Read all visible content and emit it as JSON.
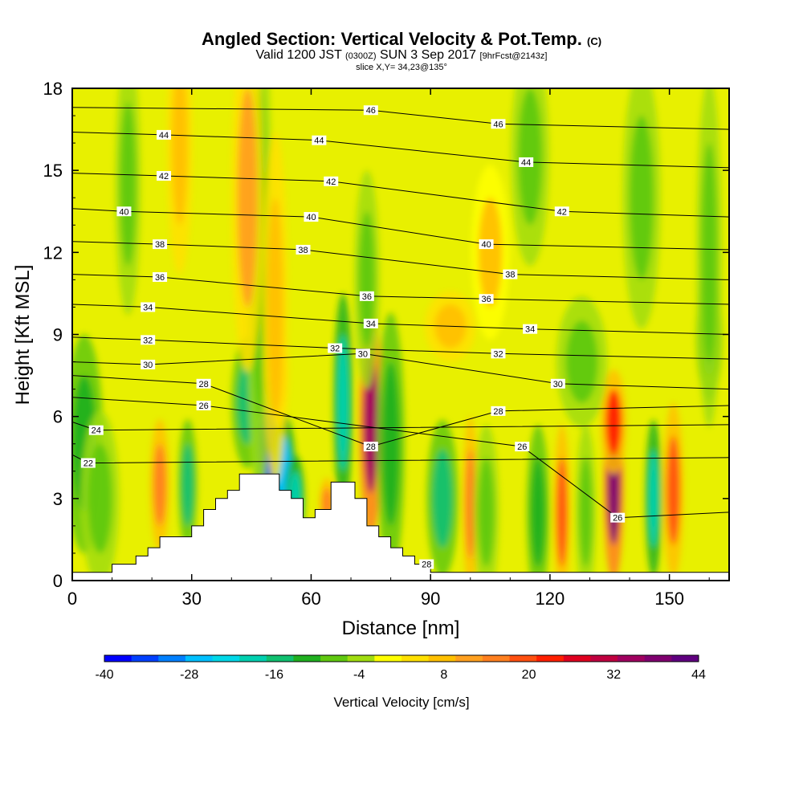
{
  "header": {
    "title": "Angled Section: Vertical Velocity & Pot.Temp.",
    "title_suffix": "(C)",
    "valid_prefix": "Valid 1200 JST",
    "valid_utc": "(0300Z)",
    "valid_date": "SUN 3 Sep 2017",
    "forecast": "[9hrFcst@2143z]",
    "slice": "slice X,Y= 34,23@135°"
  },
  "chart_data": {
    "type": "heatmap",
    "title": "Angled Section: Vertical Velocity & Pot.Temp.",
    "xlabel": "Distance [nm]",
    "ylabel": "Height [Kft MSL]",
    "xlim": [
      0,
      165
    ],
    "ylim": [
      0,
      18
    ],
    "xticks": [
      0,
      30,
      60,
      90,
      120,
      150
    ],
    "yticks": [
      0,
      3,
      6,
      9,
      12,
      15,
      18
    ],
    "colorbar": {
      "label": "Vertical Velocity [cm/s]",
      "min": -40,
      "max": 44,
      "step": 4,
      "tick_labels": [
        -40,
        -28,
        -16,
        -4,
        8,
        20,
        32,
        44
      ],
      "colors": [
        "#0000ff",
        "#0040ff",
        "#0080ff",
        "#00c0ff",
        "#00d8e8",
        "#00d0b0",
        "#10c070",
        "#20b020",
        "#60c810",
        "#a0dc10",
        "#ffff00",
        "#ffe000",
        "#ffc000",
        "#ffa020",
        "#ff8020",
        "#ff5010",
        "#ff2000",
        "#e00020",
        "#c00040",
        "#a00060",
        "#800070",
        "#600080"
      ]
    },
    "terrain": [
      [
        0,
        0.3
      ],
      [
        10,
        0.3
      ],
      [
        10,
        0.6
      ],
      [
        16,
        0.6
      ],
      [
        16,
        0.9
      ],
      [
        19,
        0.9
      ],
      [
        19,
        1.2
      ],
      [
        22,
        1.2
      ],
      [
        22,
        1.6
      ],
      [
        30,
        1.6
      ],
      [
        30,
        2.0
      ],
      [
        33,
        2.0
      ],
      [
        33,
        2.6
      ],
      [
        36,
        2.6
      ],
      [
        36,
        3.0
      ],
      [
        39,
        3.0
      ],
      [
        39,
        3.3
      ],
      [
        42,
        3.3
      ],
      [
        42,
        3.9
      ],
      [
        52,
        3.9
      ],
      [
        52,
        3.3
      ],
      [
        55,
        3.3
      ],
      [
        55,
        3.0
      ],
      [
        58,
        3.0
      ],
      [
        58,
        2.3
      ],
      [
        61,
        2.3
      ],
      [
        61,
        2.6
      ],
      [
        65,
        2.6
      ],
      [
        65,
        3.6
      ],
      [
        71,
        3.6
      ],
      [
        71,
        3.0
      ],
      [
        74,
        3.0
      ],
      [
        74,
        2.0
      ],
      [
        77,
        2.0
      ],
      [
        77,
        1.6
      ],
      [
        80,
        1.6
      ],
      [
        80,
        1.2
      ],
      [
        83,
        1.2
      ],
      [
        83,
        0.9
      ],
      [
        86,
        0.9
      ],
      [
        86,
        0.6
      ],
      [
        90,
        0.6
      ],
      [
        90,
        0.3
      ],
      [
        165,
        0.3
      ]
    ],
    "velocity_cells": [
      {
        "x": 3,
        "y": 5.0,
        "sx": 3,
        "sy": 2.5,
        "v": -10
      },
      {
        "x": 7,
        "y": 3.0,
        "sx": 3,
        "sy": 2.0,
        "v": -6
      },
      {
        "x": 22,
        "y": 3.5,
        "sx": 1.5,
        "sy": 1.5,
        "v": 18
      },
      {
        "x": 29,
        "y": 3.5,
        "sx": 1.5,
        "sy": 1.5,
        "v": -14
      },
      {
        "x": 27,
        "y": 16.0,
        "sx": 2,
        "sy": 3,
        "v": 10
      },
      {
        "x": 44,
        "y": 6.5,
        "sx": 2.5,
        "sy": 1.5,
        "v": -14
      },
      {
        "x": 49,
        "y": 4.8,
        "sx": 2.0,
        "sy": 1.6,
        "v": -34
      },
      {
        "x": 53,
        "y": 4.0,
        "sx": 2.0,
        "sy": 1.3,
        "v": -26
      },
      {
        "x": 56,
        "y": 3.0,
        "sx": 1.5,
        "sy": 1.0,
        "v": -18
      },
      {
        "x": 52,
        "y": 7.5,
        "sx": 1.5,
        "sy": 1.2,
        "v": 12
      },
      {
        "x": 47,
        "y": 12.0,
        "sx": 2,
        "sy": 6,
        "v": -8
      },
      {
        "x": 44,
        "y": 14.0,
        "sx": 2.5,
        "sy": 4,
        "v": 12
      },
      {
        "x": 51,
        "y": 10.0,
        "sx": 2,
        "sy": 4,
        "v": 10
      },
      {
        "x": 64,
        "y": 2.8,
        "sx": 1.2,
        "sy": 0.6,
        "v": 18
      },
      {
        "x": 68,
        "y": 6.5,
        "sx": 1.5,
        "sy": 2.5,
        "v": -18
      },
      {
        "x": 75,
        "y": 5.8,
        "sx": 1.8,
        "sy": 2.6,
        "v": 36
      },
      {
        "x": 80,
        "y": 5.0,
        "sx": 2.2,
        "sy": 3.0,
        "v": -12
      },
      {
        "x": 74,
        "y": 11.0,
        "sx": 2,
        "sy": 2.5,
        "v": -8
      },
      {
        "x": 93,
        "y": 3.0,
        "sx": 2.5,
        "sy": 1.8,
        "v": -14
      },
      {
        "x": 100,
        "y": 2.8,
        "sx": 1.2,
        "sy": 2.0,
        "v": 18
      },
      {
        "x": 104,
        "y": 2.5,
        "sx": 2.0,
        "sy": 2.0,
        "v": -8
      },
      {
        "x": 117,
        "y": 2.5,
        "sx": 1.8,
        "sy": 2.0,
        "v": -12
      },
      {
        "x": 123,
        "y": 2.5,
        "sx": 1.3,
        "sy": 2.0,
        "v": 22
      },
      {
        "x": 129,
        "y": 2.5,
        "sx": 1.6,
        "sy": 2.0,
        "v": -8
      },
      {
        "x": 136,
        "y": 3.5,
        "sx": 1.6,
        "sy": 2.2,
        "v": 42
      },
      {
        "x": 136,
        "y": 5.8,
        "sx": 2.0,
        "sy": 1.2,
        "v": 24
      },
      {
        "x": 146,
        "y": 3.0,
        "sx": 1.3,
        "sy": 1.8,
        "v": -18
      },
      {
        "x": 151,
        "y": 3.3,
        "sx": 1.6,
        "sy": 2.0,
        "v": 20
      },
      {
        "x": 95,
        "y": 9.3,
        "sx": 4,
        "sy": 0.8,
        "v": 10
      },
      {
        "x": 160,
        "y": 9.0,
        "sx": 2,
        "sy": 1.5,
        "v": -10
      },
      {
        "x": 115,
        "y": 15.5,
        "sx": 3,
        "sy": 2.5,
        "v": -6
      },
      {
        "x": 143,
        "y": 14.0,
        "sx": 3,
        "sy": 3.0,
        "v": -6
      },
      {
        "x": 160,
        "y": 12.0,
        "sx": 2,
        "sy": 4.0,
        "v": -6
      },
      {
        "x": 14,
        "y": 14.5,
        "sx": 2,
        "sy": 3.0,
        "v": -6
      },
      {
        "x": 105,
        "y": 12.0,
        "sx": 3,
        "sy": 2.0,
        "v": 8
      },
      {
        "x": 128,
        "y": 8.0,
        "sx": 4,
        "sy": 1.5,
        "v": -5
      }
    ],
    "contour_labels": [
      {
        "x": 75,
        "y": 17.2,
        "t": "46"
      },
      {
        "x": 107,
        "y": 16.7,
        "t": "46"
      },
      {
        "x": 23,
        "y": 16.3,
        "t": "44"
      },
      {
        "x": 62,
        "y": 16.1,
        "t": "44"
      },
      {
        "x": 114,
        "y": 15.3,
        "t": "44"
      },
      {
        "x": 23,
        "y": 14.8,
        "t": "42"
      },
      {
        "x": 65,
        "y": 14.6,
        "t": "42"
      },
      {
        "x": 123,
        "y": 13.5,
        "t": "42"
      },
      {
        "x": 13,
        "y": 13.5,
        "t": "40"
      },
      {
        "x": 60,
        "y": 13.3,
        "t": "40"
      },
      {
        "x": 104,
        "y": 12.3,
        "t": "40"
      },
      {
        "x": 22,
        "y": 12.3,
        "t": "38"
      },
      {
        "x": 58,
        "y": 12.1,
        "t": "38"
      },
      {
        "x": 110,
        "y": 11.2,
        "t": "38"
      },
      {
        "x": 22,
        "y": 11.1,
        "t": "36"
      },
      {
        "x": 74,
        "y": 10.4,
        "t": "36"
      },
      {
        "x": 104,
        "y": 10.3,
        "t": "36"
      },
      {
        "x": 19,
        "y": 10.0,
        "t": "34"
      },
      {
        "x": 75,
        "y": 9.4,
        "t": "34"
      },
      {
        "x": 115,
        "y": 9.2,
        "t": "34"
      },
      {
        "x": 19,
        "y": 8.8,
        "t": "32"
      },
      {
        "x": 66,
        "y": 8.5,
        "t": "32"
      },
      {
        "x": 107,
        "y": 8.3,
        "t": "32"
      },
      {
        "x": 19,
        "y": 7.9,
        "t": "30"
      },
      {
        "x": 73,
        "y": 8.3,
        "t": "30"
      },
      {
        "x": 122,
        "y": 7.2,
        "t": "30"
      },
      {
        "x": 33,
        "y": 7.2,
        "t": "28"
      },
      {
        "x": 107,
        "y": 6.2,
        "t": "28"
      },
      {
        "x": 75,
        "y": 4.9,
        "t": "28"
      },
      {
        "x": 33,
        "y": 6.4,
        "t": "26"
      },
      {
        "x": 113,
        "y": 4.9,
        "t": "26"
      },
      {
        "x": 137,
        "y": 2.3,
        "t": "26"
      },
      {
        "x": 6,
        "y": 5.5,
        "t": "24"
      },
      {
        "x": 4,
        "y": 4.3,
        "t": "22"
      },
      {
        "x": 89,
        "y": 0.6,
        "t": "28"
      }
    ]
  }
}
